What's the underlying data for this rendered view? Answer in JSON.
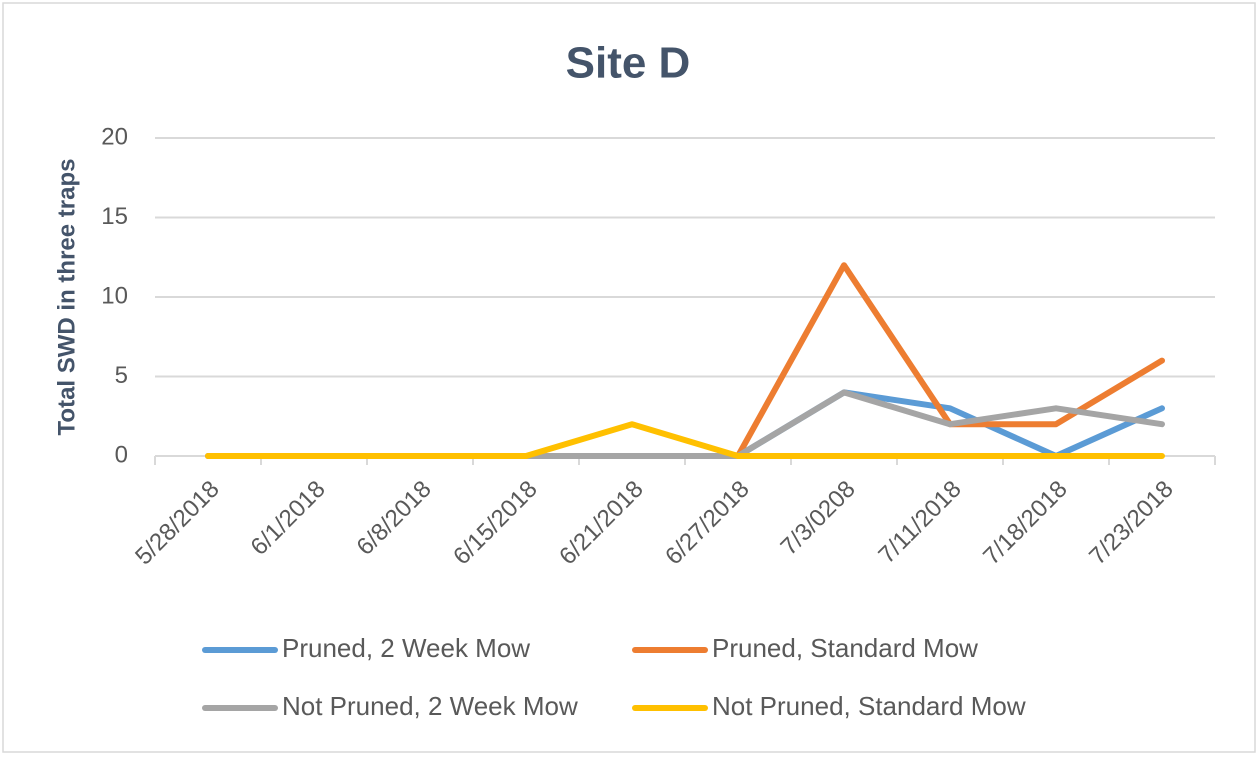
{
  "chart_data": {
    "type": "line",
    "title": "Site D",
    "y_label": "Total SWD in three traps",
    "categories": [
      "5/28/2018",
      "6/1/2018",
      "6/8/2018",
      "6/15/2018",
      "6/21/2018",
      "6/27/2018",
      "7/3/0208",
      "7/11/2018",
      "7/18/2018",
      "7/23/2018"
    ],
    "series": [
      {
        "name": "Pruned, 2 Week Mow",
        "color": "#5b9bd5",
        "values": [
          0,
          0,
          0,
          0,
          0,
          0,
          4,
          3,
          0,
          3
        ]
      },
      {
        "name": "Pruned, Standard Mow",
        "color": "#ed7d31",
        "values": [
          0,
          0,
          0,
          0,
          0,
          0,
          12,
          2,
          2,
          6
        ]
      },
      {
        "name": "Not Pruned, 2 Week Mow",
        "color": "#a5a5a5",
        "values": [
          0,
          0,
          0,
          0,
          0,
          0,
          4,
          2,
          3,
          2
        ]
      },
      {
        "name": "Not Pruned, Standard Mow",
        "color": "#ffc000",
        "values": [
          0,
          0,
          0,
          0,
          2,
          0,
          0,
          0,
          0,
          0
        ]
      }
    ],
    "ylim": [
      0,
      20
    ],
    "yticks": [
      0,
      5,
      10,
      15,
      20
    ],
    "grid": true,
    "legend": "bottom"
  }
}
